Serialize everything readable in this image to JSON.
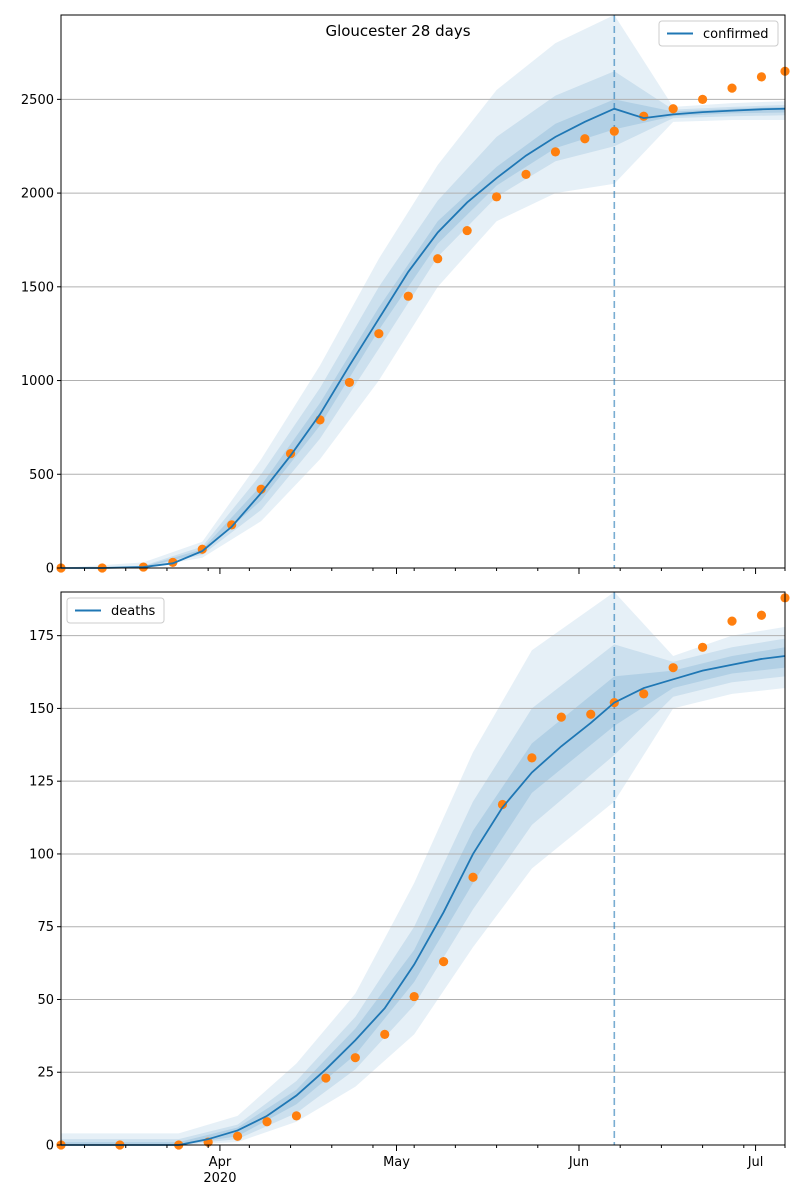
{
  "chart_data": [
    {
      "type": "line",
      "title": "Gloucester 28 days",
      "xlabel": "",
      "ylabel": "",
      "x_range": [
        "2020-03-05",
        "2020-07-06"
      ],
      "ylim": [
        0,
        2950
      ],
      "y_ticks": [
        0,
        500,
        1000,
        1500,
        2000,
        2500
      ],
      "grid": "horizontal",
      "legend_position": "top-right",
      "forecast_start": "2020-06-07",
      "series": [
        {
          "name": "confirmed",
          "type": "line",
          "color": "#1f77b4",
          "x": [
            "2020-03-05",
            "2020-03-12",
            "2020-03-19",
            "2020-03-24",
            "2020-03-29",
            "2020-04-03",
            "2020-04-08",
            "2020-04-13",
            "2020-04-18",
            "2020-04-23",
            "2020-04-28",
            "2020-05-03",
            "2020-05-08",
            "2020-05-13",
            "2020-05-18",
            "2020-05-23",
            "2020-05-28",
            "2020-06-02",
            "2020-06-07",
            "2020-06-12",
            "2020-06-17",
            "2020-06-22",
            "2020-06-27",
            "2020-07-02",
            "2020-07-06"
          ],
          "values": [
            0,
            0,
            5,
            25,
            90,
            220,
            400,
            600,
            820,
            1080,
            1330,
            1580,
            1790,
            1950,
            2080,
            2200,
            2300,
            2380,
            2450,
            2400,
            2420,
            2432,
            2440,
            2447,
            2450
          ]
        },
        {
          "name": "",
          "type": "scatter",
          "color": "#ff7f0e",
          "x": [
            "2020-03-05",
            "2020-03-12",
            "2020-03-19",
            "2020-03-24",
            "2020-03-29",
            "2020-04-03",
            "2020-04-08",
            "2020-04-13",
            "2020-04-18",
            "2020-04-23",
            "2020-04-28",
            "2020-05-03",
            "2020-05-08",
            "2020-05-13",
            "2020-05-18",
            "2020-05-23",
            "2020-05-28",
            "2020-06-02",
            "2020-06-07",
            "2020-06-12",
            "2020-06-17",
            "2020-06-22",
            "2020-06-27",
            "2020-07-02",
            "2020-07-06"
          ],
          "values": [
            0,
            0,
            5,
            30,
            100,
            230,
            420,
            610,
            790,
            990,
            1250,
            1450,
            1650,
            1800,
            1980,
            2100,
            2220,
            2290,
            2330,
            2410,
            2450,
            2500,
            2560,
            2620,
            2650
          ]
        }
      ],
      "bands": [
        {
          "level": "outer",
          "x": [
            "2020-03-05",
            "2020-03-19",
            "2020-03-29",
            "2020-04-08",
            "2020-04-18",
            "2020-04-28",
            "2020-05-08",
            "2020-05-18",
            "2020-05-28",
            "2020-06-07",
            "2020-06-17",
            "2020-06-27",
            "2020-07-06"
          ],
          "lower": [
            0,
            0,
            55,
            250,
            580,
            1000,
            1500,
            1850,
            2000,
            2050,
            2380,
            2390,
            2390
          ],
          "upper": [
            0,
            30,
            140,
            580,
            1080,
            1650,
            2150,
            2550,
            2800,
            2950,
            2460,
            2480,
            2490
          ]
        },
        {
          "level": "middle",
          "x": [
            "2020-03-05",
            "2020-03-19",
            "2020-03-29",
            "2020-04-08",
            "2020-04-18",
            "2020-04-28",
            "2020-05-08",
            "2020-05-18",
            "2020-05-28",
            "2020-06-07",
            "2020-06-17",
            "2020-06-27",
            "2020-07-06"
          ],
          "lower": [
            0,
            2,
            70,
            310,
            690,
            1170,
            1660,
            1980,
            2170,
            2250,
            2400,
            2410,
            2415
          ],
          "upper": [
            0,
            12,
            115,
            500,
            960,
            1500,
            1960,
            2300,
            2520,
            2650,
            2445,
            2460,
            2470
          ]
        },
        {
          "level": "inner",
          "x": [
            "2020-03-05",
            "2020-03-19",
            "2020-03-29",
            "2020-04-08",
            "2020-04-18",
            "2020-04-28",
            "2020-05-08",
            "2020-05-18",
            "2020-05-28",
            "2020-06-07",
            "2020-06-17",
            "2020-06-27",
            "2020-07-06"
          ],
          "lower": [
            0,
            4,
            80,
            360,
            760,
            1270,
            1730,
            2040,
            2240,
            2340,
            2410,
            2425,
            2430
          ],
          "upper": [
            0,
            8,
            100,
            440,
            880,
            1390,
            1850,
            2140,
            2370,
            2500,
            2435,
            2450,
            2460
          ]
        }
      ]
    },
    {
      "type": "line",
      "title": "",
      "xlabel": "",
      "ylabel": "",
      "x_range": [
        "2020-03-05",
        "2020-07-06"
      ],
      "x_ticks": [
        "Apr",
        "May",
        "Jun",
        "Jul"
      ],
      "x_ticks_dates": [
        "2020-04-01",
        "2020-05-01",
        "2020-06-01",
        "2020-07-01"
      ],
      "x_secondary_label": "2020",
      "ylim": [
        0,
        190
      ],
      "y_ticks": [
        0,
        25,
        50,
        75,
        100,
        125,
        150,
        175
      ],
      "grid": "horizontal",
      "legend_position": "top-left",
      "forecast_start": "2020-06-07",
      "series": [
        {
          "name": "deaths",
          "type": "line",
          "color": "#1f77b4",
          "x": [
            "2020-03-05",
            "2020-03-15",
            "2020-03-25",
            "2020-03-30",
            "2020-04-04",
            "2020-04-09",
            "2020-04-14",
            "2020-04-19",
            "2020-04-24",
            "2020-04-29",
            "2020-05-04",
            "2020-05-09",
            "2020-05-14",
            "2020-05-19",
            "2020-05-24",
            "2020-05-29",
            "2020-06-03",
            "2020-06-07",
            "2020-06-12",
            "2020-06-17",
            "2020-06-22",
            "2020-06-27",
            "2020-07-02",
            "2020-07-06"
          ],
          "values": [
            0,
            0,
            0,
            2,
            5,
            10,
            17,
            26,
            36,
            47,
            62,
            80,
            100,
            116,
            128,
            137,
            145,
            152,
            157,
            160,
            163,
            165,
            167,
            168
          ]
        },
        {
          "name": "",
          "type": "scatter",
          "color": "#ff7f0e",
          "x": [
            "2020-03-05",
            "2020-03-15",
            "2020-03-25",
            "2020-03-30",
            "2020-04-04",
            "2020-04-09",
            "2020-04-14",
            "2020-04-19",
            "2020-04-24",
            "2020-04-29",
            "2020-05-04",
            "2020-05-09",
            "2020-05-14",
            "2020-05-19",
            "2020-05-24",
            "2020-05-29",
            "2020-06-03",
            "2020-06-07",
            "2020-06-12",
            "2020-06-17",
            "2020-06-22",
            "2020-06-27",
            "2020-07-02",
            "2020-07-06"
          ],
          "values": [
            0,
            0,
            0,
            1,
            3,
            8,
            10,
            23,
            30,
            38,
            51,
            63,
            92,
            117,
            133,
            147,
            148,
            152,
            155,
            164,
            171,
            180,
            182,
            188
          ]
        }
      ],
      "bands": [
        {
          "level": "outer",
          "x": [
            "2020-03-05",
            "2020-03-25",
            "2020-04-04",
            "2020-04-14",
            "2020-04-24",
            "2020-05-04",
            "2020-05-14",
            "2020-05-24",
            "2020-06-07",
            "2020-06-17",
            "2020-06-27",
            "2020-07-06"
          ],
          "lower": [
            0,
            0,
            1,
            8,
            20,
            38,
            68,
            95,
            118,
            150,
            155,
            157
          ],
          "upper": [
            4,
            4,
            10,
            28,
            52,
            90,
            135,
            170,
            190,
            168,
            175,
            178
          ]
        },
        {
          "level": "middle",
          "x": [
            "2020-03-05",
            "2020-03-25",
            "2020-04-04",
            "2020-04-14",
            "2020-04-24",
            "2020-05-04",
            "2020-05-14",
            "2020-05-24",
            "2020-06-07",
            "2020-06-17",
            "2020-06-27",
            "2020-07-06"
          ],
          "lower": [
            0,
            0,
            2,
            11,
            26,
            48,
            81,
            110,
            134,
            154,
            159,
            161
          ],
          "upper": [
            2,
            2,
            7,
            22,
            44,
            75,
            118,
            150,
            172,
            166,
            171,
            174
          ]
        },
        {
          "level": "inner",
          "x": [
            "2020-03-05",
            "2020-03-25",
            "2020-04-04",
            "2020-04-14",
            "2020-04-24",
            "2020-05-04",
            "2020-05-14",
            "2020-05-24",
            "2020-06-07",
            "2020-06-17",
            "2020-06-27",
            "2020-07-06"
          ],
          "lower": [
            0,
            0,
            3,
            14,
            31,
            56,
            90,
            121,
            144,
            157,
            162,
            164
          ],
          "upper": [
            1,
            1,
            6,
            19,
            40,
            67,
            108,
            138,
            161,
            163,
            168,
            171
          ]
        }
      ]
    }
  ]
}
